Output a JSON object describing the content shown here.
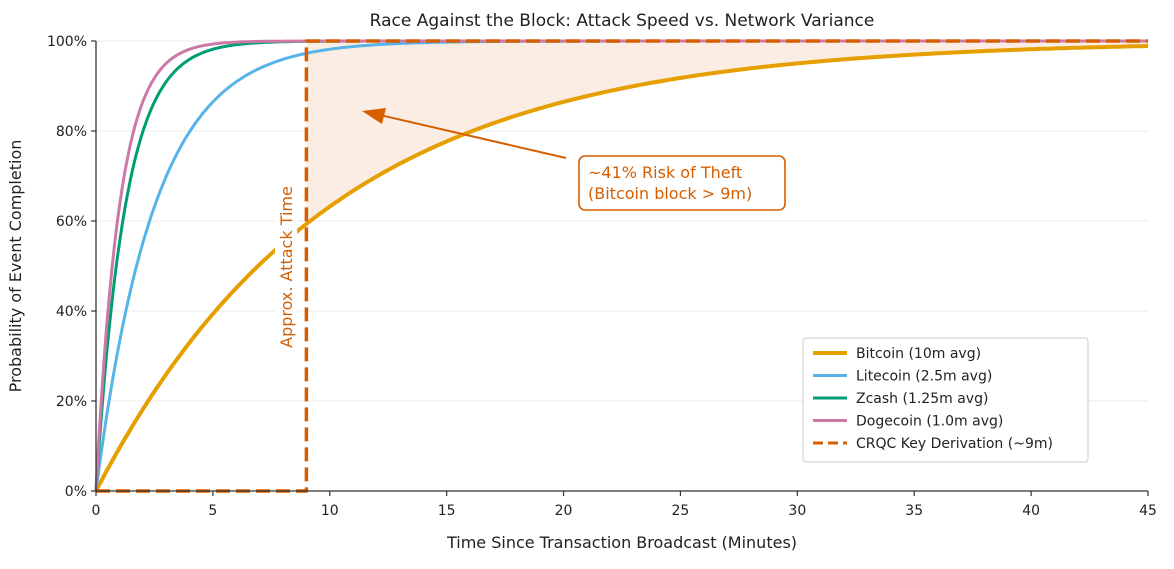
{
  "chart_data": {
    "type": "line",
    "title": "Race Against the Block: Attack Speed vs. Network Variance",
    "xlabel": "Time Since Transaction Broadcast (Minutes)",
    "ylabel": "Probability of Event Completion",
    "xlim": [
      0,
      45
    ],
    "ylim": [
      0,
      1
    ],
    "xticks": [
      0,
      5,
      10,
      15,
      20,
      25,
      30,
      35,
      40,
      45
    ],
    "xtick_labels": [
      "0",
      "5",
      "10",
      "15",
      "20",
      "25",
      "30",
      "35",
      "40",
      "45"
    ],
    "yticks": [
      0,
      0.2,
      0.4,
      0.6,
      0.8,
      1.0
    ],
    "ytick_labels": [
      "0%",
      "20%",
      "40%",
      "60%",
      "80%",
      "100%"
    ],
    "grid": "horizontal",
    "legend_position": "lower-right",
    "series": [
      {
        "name": "Bitcoin (10m avg)",
        "model": "1 - exp(-t/mean)",
        "mean_minutes": 10,
        "color": "#E69F00",
        "style": "solid"
      },
      {
        "name": "Litecoin (2.5m avg)",
        "model": "1 - exp(-t/mean)",
        "mean_minutes": 2.5,
        "color": "#56B4E9",
        "style": "solid"
      },
      {
        "name": "Zcash (1.25m avg)",
        "model": "1 - exp(-t/mean)",
        "mean_minutes": 1.25,
        "color": "#009E73",
        "style": "solid"
      },
      {
        "name": "Dogecoin (1.0m avg)",
        "model": "1 - exp(-t/mean)",
        "mean_minutes": 1.0,
        "color": "#CC79A7",
        "style": "solid"
      },
      {
        "name": "CRQC Key Derivation (~9m)",
        "model": "step",
        "step_at": 9,
        "color": "#D55E00",
        "style": "dashed"
      }
    ],
    "shaded_region": {
      "between": [
        "Bitcoin (10m avg)",
        1.0
      ],
      "x_from": 9,
      "x_to": 45,
      "color": "#FBEDE3"
    },
    "annotations": {
      "vline_label": "Approx. Attack Time",
      "risk_line1": "~41% Risk of Theft",
      "risk_line2": "(Bitcoin block > 9m)",
      "arrow_target": [
        11.5,
        0.845
      ],
      "color": "#D55E00"
    }
  }
}
